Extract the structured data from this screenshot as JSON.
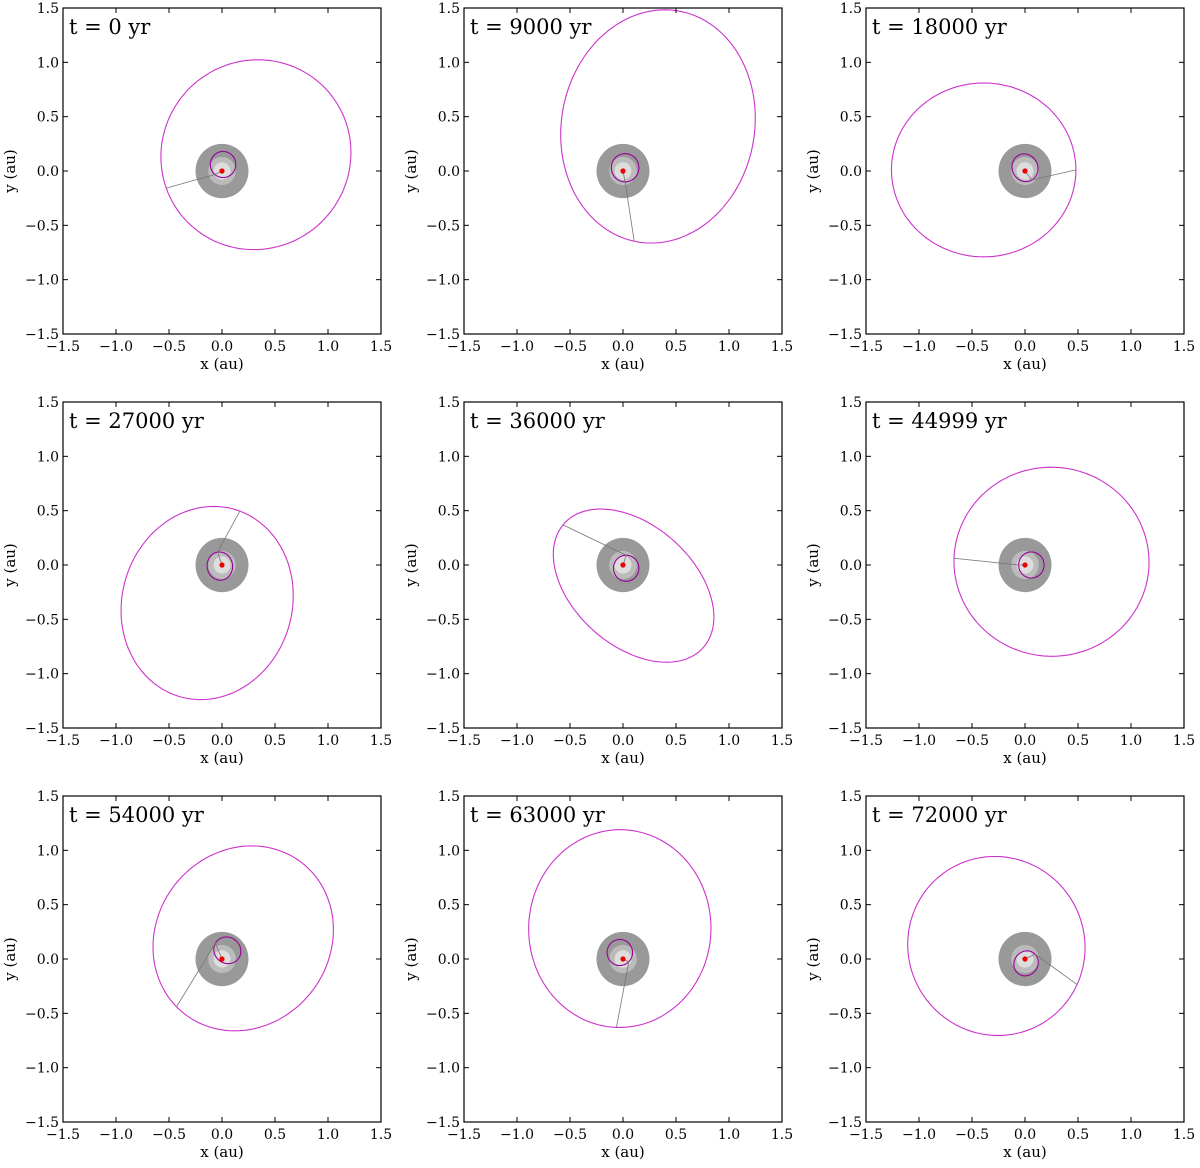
{
  "chart_data": {
    "type": "scatter",
    "layout": "3x3 grid",
    "xlabel": "x (au)",
    "ylabel": "y (au)",
    "xlim": [
      -1.5,
      1.5
    ],
    "ylim": [
      -1.5,
      1.5
    ],
    "xticks": [
      "−1.5",
      "−1.0",
      "−0.5",
      "0.0",
      "0.5",
      "1.0",
      "1.5"
    ],
    "yticks": [
      "1.5",
      "1.0",
      "0.5",
      "0.0",
      "−0.5",
      "−1.0",
      "−1.5"
    ],
    "grid": false,
    "colors": {
      "outer_orbit": "#cc33cc",
      "inner_orbit": "#990099",
      "disk_outer": "#999999",
      "disk_mid": "#bbbbbb",
      "disk_inner": "#dddddd",
      "center": "#ee0000",
      "connector": "#777777"
    },
    "disk": {
      "outer_radius": 0.25,
      "mid_radius": 0.13,
      "inner_radius": 0.08
    },
    "panels": [
      {
        "title": "t = 0 yr",
        "outer": {
          "cx": 0.32,
          "cy": 0.15,
          "rx": 0.9,
          "ry": 0.87,
          "angle_deg": 200
        },
        "inner": {
          "cx": 0.01,
          "cy": 0.06,
          "rx": 0.12,
          "ry": 0.12,
          "angle_deg": 230
        }
      },
      {
        "title": "t = 9000 yr",
        "outer": {
          "cx": 0.33,
          "cy": 0.41,
          "rx": 1.08,
          "ry": 0.91,
          "angle_deg": 78
        },
        "inner": {
          "cx": 0.02,
          "cy": 0.03,
          "rx": 0.13,
          "ry": 0.13,
          "angle_deg": 270
        }
      },
      {
        "title": "t = 18000 yr",
        "outer": {
          "cx": -0.39,
          "cy": 0.01,
          "rx": 0.87,
          "ry": 0.8,
          "angle_deg": 0
        },
        "inner": {
          "cx": 0.0,
          "cy": 0.03,
          "rx": 0.13,
          "ry": 0.12,
          "angle_deg": 300
        }
      },
      {
        "title": "t = 27000 yr",
        "outer": {
          "cx": -0.14,
          "cy": -0.35,
          "rx": 0.9,
          "ry": 0.8,
          "angle_deg": 70
        },
        "inner": {
          "cx": -0.02,
          "cy": -0.01,
          "rx": 0.12,
          "ry": 0.13,
          "angle_deg": 190
        }
      },
      {
        "title": "t = 36000 yr",
        "outer": {
          "cx": 0.1,
          "cy": -0.19,
          "rx": 0.87,
          "ry": 0.56,
          "angle_deg": 140
        },
        "inner": {
          "cx": 0.03,
          "cy": -0.03,
          "rx": 0.12,
          "ry": 0.12,
          "angle_deg": 270
        }
      },
      {
        "title": "t = 44999 yr",
        "outer": {
          "cx": 0.25,
          "cy": 0.03,
          "rx": 0.92,
          "ry": 0.87,
          "angle_deg": 178
        },
        "inner": {
          "cx": 0.06,
          "cy": 0.0,
          "rx": 0.12,
          "ry": 0.12,
          "angle_deg": 0
        }
      },
      {
        "title": "t = 54000 yr",
        "outer": {
          "cx": 0.2,
          "cy": 0.19,
          "rx": 0.89,
          "ry": 0.81,
          "angle_deg": 225
        },
        "inner": {
          "cx": 0.05,
          "cy": 0.08,
          "rx": 0.12,
          "ry": 0.13,
          "angle_deg": 60
        }
      },
      {
        "title": "t = 63000 yr",
        "outer": {
          "cx": -0.03,
          "cy": 0.28,
          "rx": 0.91,
          "ry": 0.86,
          "angle_deg": 88
        },
        "inner": {
          "cx": -0.03,
          "cy": 0.06,
          "rx": 0.12,
          "ry": 0.12,
          "angle_deg": 135
        }
      },
      {
        "title": "t = 72000 yr",
        "outer": {
          "cx": -0.27,
          "cy": 0.12,
          "rx": 0.84,
          "ry": 0.82,
          "angle_deg": 335
        },
        "inner": {
          "cx": 0.01,
          "cy": -0.04,
          "rx": 0.12,
          "ry": 0.11,
          "angle_deg": 225
        }
      }
    ]
  }
}
